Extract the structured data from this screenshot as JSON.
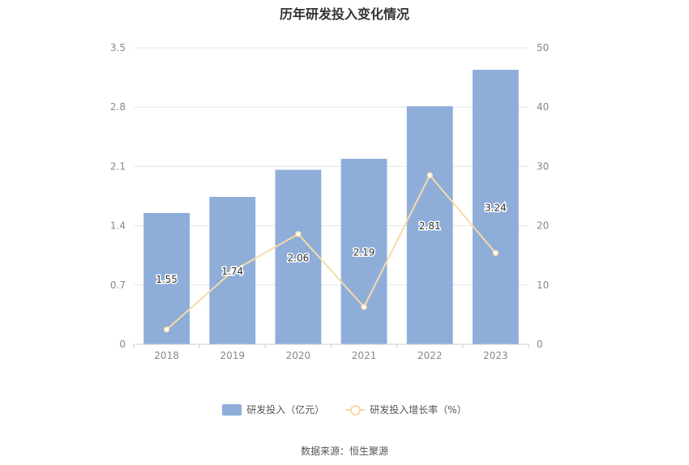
{
  "source_note": "数据来源：恒生聚源",
  "colors": {
    "bar": "#8eadd9",
    "line": "#f7dba7",
    "grid": "#e6e6ea",
    "axis_text": "#888888"
  },
  "chart_data": {
    "type": "bar",
    "title": "历年研发投入变化情况",
    "categories": [
      "2018",
      "2019",
      "2020",
      "2021",
      "2022",
      "2023"
    ],
    "y_left": {
      "min": 0,
      "max": 3.5,
      "ticks": [
        "0",
        "0.7",
        "1.4",
        "2.1",
        "2.8",
        "3.5"
      ]
    },
    "y_right": {
      "min": 0,
      "max": 50,
      "ticks": [
        "0",
        "10",
        "20",
        "30",
        "40",
        "50"
      ]
    },
    "grid": true,
    "legend_position": "bottom",
    "series": [
      {
        "name": "研发投入（亿元）",
        "type": "bar",
        "axis": "left",
        "values": [
          1.55,
          1.74,
          2.06,
          2.19,
          2.81,
          3.24
        ],
        "labels": [
          "1.55",
          "1.74",
          "2.06",
          "2.19",
          "2.81",
          "3.24"
        ]
      },
      {
        "name": "研发投入增长率（%）",
        "type": "line",
        "axis": "right",
        "values": [
          2.5,
          12.3,
          18.6,
          6.3,
          28.5,
          15.4
        ]
      }
    ]
  }
}
